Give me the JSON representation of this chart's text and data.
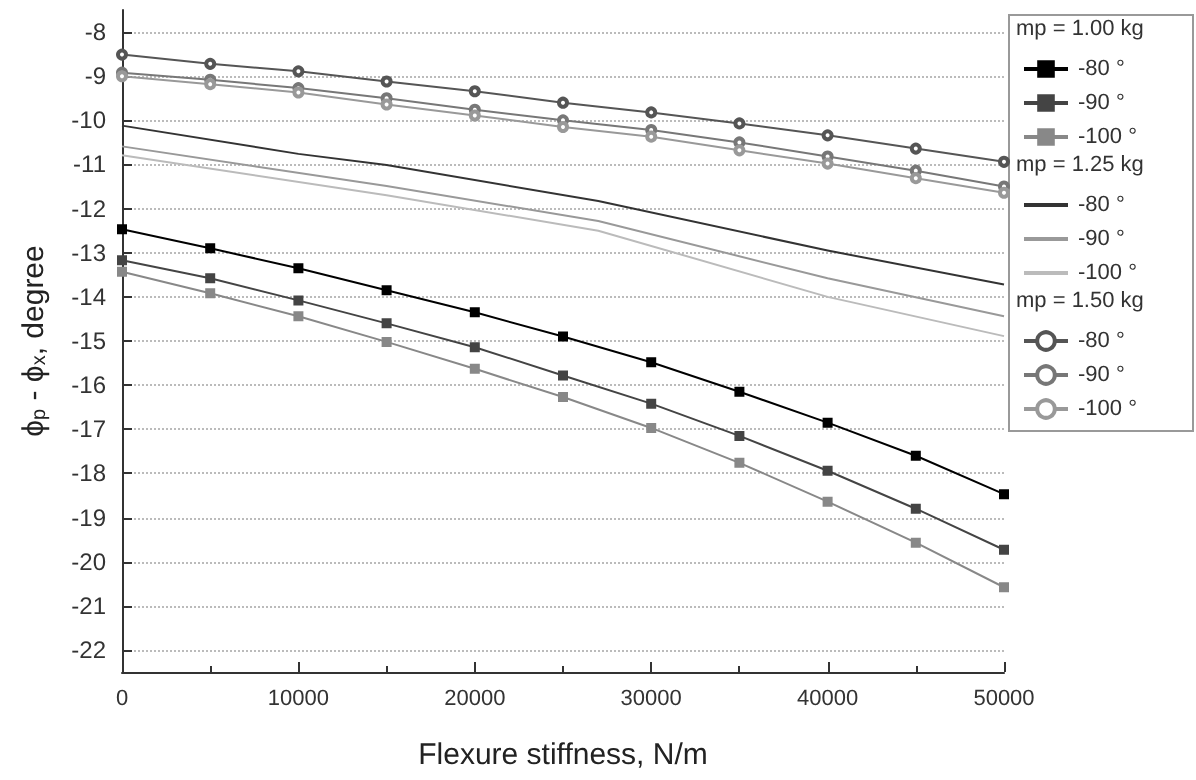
{
  "chart_data": {
    "type": "line",
    "xlabel": "Flexure stiffness, N/m",
    "ylabel": "ϕ$_{p}$ - ϕ$_{x}$, degree",
    "xlim": [
      0,
      50000
    ],
    "xticks": [
      0,
      10000,
      20000,
      30000,
      40000,
      50000
    ],
    "ylim": [
      -22.5,
      -7.5
    ],
    "yticks": [
      -22,
      -21,
      -20,
      -19,
      -18,
      -17,
      -16,
      -15,
      -14,
      -13,
      -12,
      -11,
      -10,
      -9,
      -8
    ],
    "grid": "y",
    "legend": "right",
    "annotations": [
      "mp = 1.00 kg",
      "mp = 1.25 kg",
      "mp = 1.50 kg"
    ],
    "x": [
      0,
      5000,
      10000,
      15000,
      20000,
      25000,
      30000,
      35000,
      40000,
      45000,
      50000
    ],
    "series": [
      {
        "name": "-80 °",
        "color": "#000000",
        "marker": "square",
        "values": [
          -12.47,
          -12.9,
          -13.35,
          -13.85,
          -14.35,
          -14.9,
          -15.48,
          -16.15,
          -16.85,
          -17.6,
          -18.47
        ]
      },
      {
        "name": "-90 °",
        "color": "#444444",
        "marker": "square",
        "values": [
          -13.17,
          -13.58,
          -14.08,
          -14.6,
          -15.14,
          -15.78,
          -16.42,
          -17.15,
          -17.94,
          -18.8,
          -19.73
        ]
      },
      {
        "name": "-100 °",
        "color": "#888888",
        "marker": "square",
        "values": [
          -13.43,
          -13.92,
          -14.44,
          -15.02,
          -15.63,
          -16.27,
          -16.97,
          -17.76,
          -18.64,
          -19.57,
          -20.58
        ]
      },
      {
        "name": "-80 °",
        "color": "#333333",
        "marker": "none",
        "x": [
          0,
          10000,
          15000,
          27000,
          40000,
          50000
        ],
        "values": [
          -10.12,
          -10.76,
          -11.01,
          -11.83,
          -12.95,
          -13.72
        ]
      },
      {
        "name": "-90 °",
        "color": "#999999",
        "marker": "none",
        "x": [
          0,
          15000,
          27000,
          40000,
          50000
        ],
        "values": [
          -10.59,
          -11.49,
          -12.28,
          -13.58,
          -14.44
        ]
      },
      {
        "name": "-100 °",
        "color": "#bbbbbb",
        "marker": "none",
        "x": [
          0,
          15000,
          27000,
          40000,
          50000
        ],
        "values": [
          -10.79,
          -11.7,
          -12.5,
          -14.0,
          -14.89
        ]
      },
      {
        "name": "-80 °",
        "color": "#555555",
        "marker": "circle",
        "values": [
          -8.51,
          -8.72,
          -8.89,
          -9.12,
          -9.34,
          -9.6,
          -9.82,
          -10.07,
          -10.34,
          -10.64,
          -10.94
        ]
      },
      {
        "name": "-90 °",
        "color": "#777777",
        "marker": "circle",
        "values": [
          -8.92,
          -9.08,
          -9.27,
          -9.5,
          -9.76,
          -10.0,
          -10.22,
          -10.5,
          -10.82,
          -11.14,
          -11.5
        ]
      },
      {
        "name": "-100 °",
        "color": "#999999",
        "marker": "circle",
        "values": [
          -9.0,
          -9.18,
          -9.37,
          -9.64,
          -9.89,
          -10.15,
          -10.37,
          -10.68,
          -10.98,
          -11.31,
          -11.64
        ]
      }
    ]
  }
}
